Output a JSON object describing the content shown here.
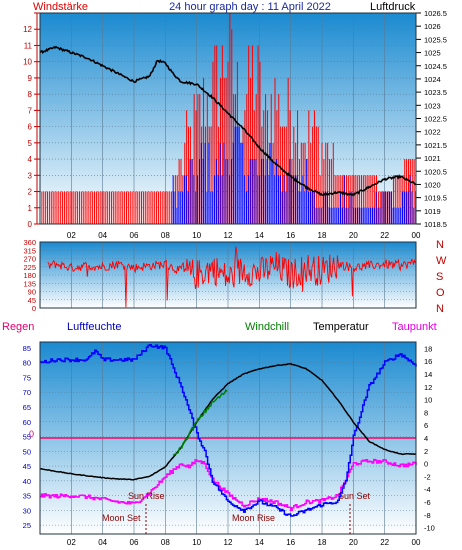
{
  "header": {
    "left_label": "Windstärke",
    "title": "24 hour graph day : 11 April 2022",
    "right_label": "Luftdruck"
  },
  "colors": {
    "wind_speed": "#ff0000",
    "wind_gust_bars": "#ff0000",
    "wind_avg_bars": "#0000ff",
    "pressure": "#000000",
    "direction": "#ff0000",
    "humidity": "#0000ff",
    "temperature": "#000000",
    "windchill": "#008000",
    "dewpoint": "#ff00ff",
    "rain": "#ff0066",
    "panel_gradient_top": "#1a8ad0",
    "panel_gradient_bottom": "#ffffff"
  },
  "bottom_legend": {
    "rain": "Regen",
    "humidity": "Luftfeuchte",
    "windchill": "Windchill",
    "temperature": "Temperatur",
    "dewpoint": "Taupunkt"
  },
  "direction_labels": [
    "N",
    "W",
    "S",
    "O",
    "N"
  ],
  "annotations": {
    "sun_rise": "Sun Rise",
    "sun_set": "Sun Set",
    "moon_set": "Moon Set",
    "moon_rise": "Moon Rise",
    "rain_zero": "0"
  },
  "chart_data": [
    {
      "type": "bar",
      "title": "24 hour graph day : 11 April 2022",
      "ylabel": "Windstärke",
      "y2label": "Luftdruck",
      "x_ticks": [
        "02",
        "04",
        "06",
        "08",
        "10",
        "12",
        "14",
        "16",
        "18",
        "20",
        "22",
        "00"
      ],
      "x_range_hours": [
        0,
        24
      ],
      "ylim": [
        0,
        13
      ],
      "y_ticks": [
        0,
        1,
        2,
        3,
        4,
        5,
        6,
        7,
        8,
        9,
        10,
        11,
        12,
        13
      ],
      "y2lim": [
        1018.5,
        1026.5
      ],
      "y2_ticks": [
        "1018.5",
        "1019",
        "1019.5",
        "1020",
        "1020.5",
        "1021",
        "1021.5",
        "1022",
        "1022.5",
        "1023",
        "1023.5",
        "1024",
        "1024.5",
        "1025",
        "1025.5",
        "1026",
        "1026.5"
      ],
      "series": [
        {
          "name": "Luftdruck",
          "axis": "y2",
          "x": [
            0,
            1,
            2,
            3,
            4,
            5,
            6,
            7,
            7.5,
            8,
            8.5,
            9,
            10,
            11,
            12,
            13,
            14,
            15,
            16,
            17,
            18,
            19,
            20,
            21,
            22,
            23,
            24
          ],
          "values": [
            1025.0,
            1025.2,
            1025.0,
            1024.8,
            1024.5,
            1024.2,
            1023.9,
            1024.1,
            1024.7,
            1024.6,
            1024.2,
            1023.9,
            1023.8,
            1023.3,
            1022.7,
            1022.1,
            1021.4,
            1020.8,
            1020.3,
            1019.9,
            1019.6,
            1019.7,
            1019.6,
            1019.9,
            1020.2,
            1020.3,
            1020.0
          ]
        },
        {
          "name": "gust",
          "axis": "y1",
          "x": [
            0,
            1,
            2,
            3,
            4,
            5,
            6,
            7,
            8,
            8.5,
            9,
            9.5,
            10,
            10.5,
            11,
            11.5,
            12,
            12.5,
            13,
            13.5,
            14,
            14.5,
            15,
            15.5,
            16,
            16.5,
            17,
            17.5,
            18,
            18.5,
            19,
            20,
            21,
            22,
            23,
            23.5
          ],
          "values": [
            2,
            2,
            2,
            2,
            2,
            2,
            2,
            2,
            2,
            2,
            4,
            6,
            7,
            8,
            9,
            10,
            12,
            9,
            8,
            10,
            9,
            7,
            9,
            7,
            8,
            7,
            6,
            6,
            5,
            5,
            3,
            3,
            3,
            2,
            3,
            4
          ]
        },
        {
          "name": "average",
          "axis": "y1",
          "x": [
            8.5,
            9,
            9.5,
            10,
            10.5,
            11,
            11.5,
            12,
            12.5,
            13,
            13.5,
            14,
            14.5,
            15,
            15.5,
            16,
            16.5,
            17,
            17.5,
            18,
            18.5,
            19,
            19.5,
            20,
            21,
            22,
            23,
            23.5
          ],
          "values": [
            2,
            2,
            3,
            3,
            4,
            3,
            4,
            4,
            5,
            4,
            4,
            3,
            4,
            4,
            3,
            3,
            2,
            3,
            2,
            2,
            1,
            1,
            2,
            1,
            1,
            2,
            1,
            2
          ]
        }
      ]
    },
    {
      "type": "line",
      "ylim": [
        0,
        360
      ],
      "y_ticks": [
        0,
        45,
        90,
        135,
        180,
        225,
        270,
        315,
        360
      ],
      "x_range_hours": [
        0,
        24
      ],
      "series": [
        {
          "name": "direction",
          "x": [
            0.5,
            1,
            2,
            3,
            4,
            5,
            6,
            7,
            8,
            9,
            10,
            11,
            12,
            13,
            14,
            15,
            16,
            17,
            18,
            19,
            20,
            21,
            22,
            23,
            24
          ],
          "values": [
            230,
            240,
            220,
            230,
            225,
            240,
            220,
            230,
            240,
            200,
            180,
            220,
            160,
            210,
            190,
            230,
            180,
            220,
            200,
            240,
            220,
            230,
            240,
            230,
            250
          ]
        }
      ]
    },
    {
      "type": "line",
      "x_ticks": [
        "02",
        "04",
        "06",
        "08",
        "10",
        "12",
        "14",
        "16",
        "18",
        "20",
        "22",
        "00"
      ],
      "x_range_hours": [
        0,
        24
      ],
      "ylim": [
        22,
        87
      ],
      "y_ticks": [
        25,
        30,
        35,
        40,
        45,
        50,
        55,
        60,
        65,
        70,
        75,
        80,
        85
      ],
      "y2lim": [
        -11,
        19
      ],
      "y2_ticks": [
        -10,
        -8,
        -6,
        -4,
        -2,
        0,
        2,
        4,
        6,
        8,
        10,
        12,
        14,
        16,
        18
      ],
      "series": [
        {
          "name": "Luftfeuchte",
          "axis": "y1",
          "x": [
            0,
            1,
            2,
            3,
            3.5,
            4,
            5,
            6,
            7,
            8,
            8.5,
            9,
            9.5,
            10,
            10.5,
            11,
            12,
            13,
            14,
            15,
            16,
            17,
            18,
            19,
            19.5,
            20,
            21,
            22,
            23,
            24
          ],
          "values": [
            80,
            81,
            81,
            81,
            84,
            81,
            81,
            81,
            86,
            85,
            78,
            72,
            64,
            56,
            50,
            40,
            33,
            30,
            33,
            31,
            28,
            30,
            32,
            33,
            40,
            55,
            72,
            80,
            83,
            79
          ]
        },
        {
          "name": "Temperatur",
          "axis": "y2",
          "x": [
            0,
            1,
            2,
            3,
            4,
            5,
            6,
            7,
            8,
            9,
            10,
            11,
            12,
            13,
            14,
            15,
            16,
            17,
            18,
            19,
            20,
            21,
            22,
            23,
            24
          ],
          "values": [
            -0.8,
            -1.2,
            -1.6,
            -1.9,
            -2.2,
            -2.4,
            -2.5,
            -2.0,
            -0.5,
            2.5,
            6.5,
            10.0,
            12.5,
            14.0,
            14.8,
            15.3,
            15.6,
            14.8,
            13.0,
            10.0,
            6.5,
            3.5,
            2.2,
            1.5,
            1.5
          ]
        },
        {
          "name": "Windchill",
          "axis": "y2",
          "x": [
            8.5,
            9,
            9.5,
            10,
            10.5,
            11,
            11.5,
            12
          ],
          "values": [
            1.0,
            2.5,
            4.5,
            6.5,
            8.0,
            9.5,
            10.5,
            11.5
          ]
        },
        {
          "name": "Taupunkt",
          "axis": "y2",
          "x": [
            0,
            1,
            2,
            3,
            4,
            5,
            6,
            7,
            8,
            9,
            9.5,
            10,
            10.5,
            11,
            12,
            13,
            14,
            15,
            16,
            17,
            18,
            19,
            20,
            21,
            22,
            23,
            24
          ],
          "values": [
            -5.0,
            -5.1,
            -5.0,
            -5.2,
            -5.6,
            -6.0,
            -6.3,
            -4.5,
            -2.0,
            0.0,
            -0.5,
            0.5,
            0.0,
            -2.5,
            -4.8,
            -6.5,
            -5.5,
            -6.0,
            -7.0,
            -6.0,
            -5.8,
            -5.0,
            0.0,
            0.4,
            0.3,
            -0.3,
            0.0
          ]
        },
        {
          "name": "Regen",
          "axis": "y2",
          "x": [
            0,
            24
          ],
          "values": [
            4.0,
            4.0
          ]
        }
      ]
    }
  ]
}
